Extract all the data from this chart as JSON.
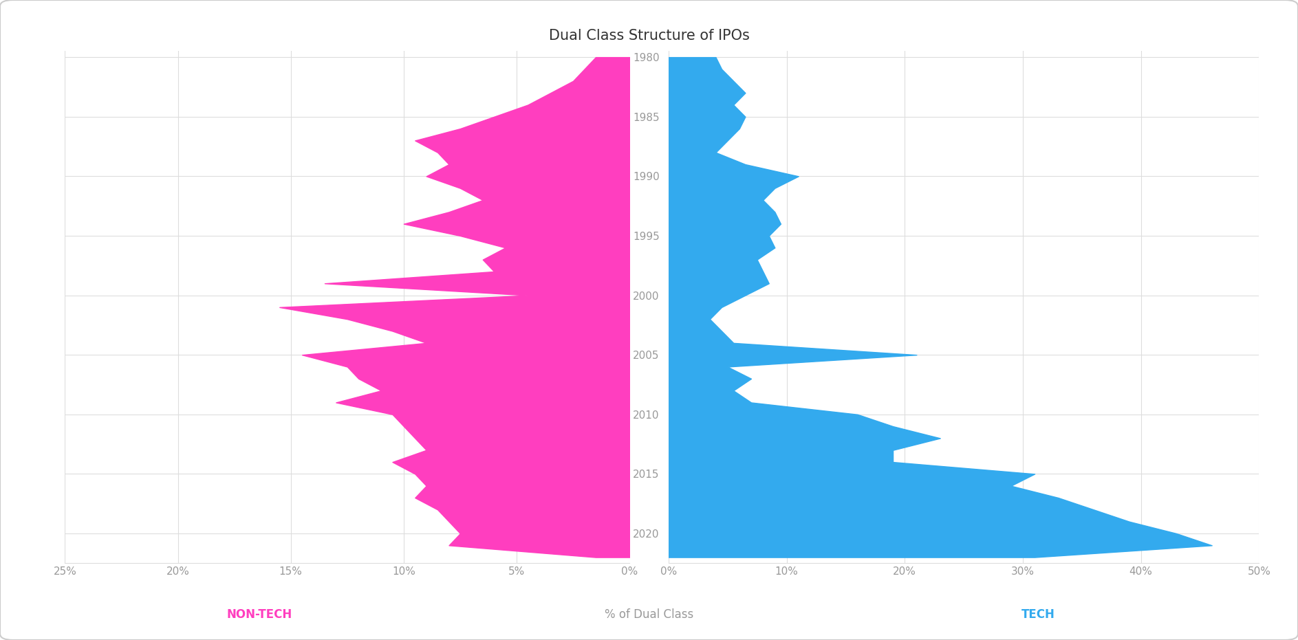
{
  "title": "Dual Class Structure of IPOs",
  "title_fontsize": 15,
  "background_color": "#ffffff",
  "border_color": "#cccccc",
  "nontech_color": "#FF3EBF",
  "tech_color": "#33AAEE",
  "grid_color": "#dddddd",
  "axis_label_color": "#999999",
  "nontech_label_color": "#FF3EBF",
  "tech_label_color": "#33AAEE",
  "xlabel": "% of Dual Class",
  "nontech_label": "NON-TECH",
  "tech_label": "TECH",
  "years": [
    1980,
    1981,
    1982,
    1983,
    1984,
    1985,
    1986,
    1987,
    1988,
    1989,
    1990,
    1991,
    1992,
    1993,
    1994,
    1995,
    1996,
    1997,
    1998,
    1999,
    2000,
    2001,
    2002,
    2003,
    2004,
    2005,
    2006,
    2007,
    2008,
    2009,
    2010,
    2011,
    2012,
    2013,
    2014,
    2015,
    2016,
    2017,
    2018,
    2019,
    2020,
    2021,
    2022
  ],
  "nontech": [
    1.5,
    2.0,
    2.5,
    3.5,
    4.5,
    6.0,
    7.5,
    9.5,
    8.5,
    8.0,
    9.0,
    7.5,
    6.5,
    8.0,
    10.0,
    7.5,
    5.5,
    6.5,
    6.0,
    13.5,
    4.5,
    15.5,
    12.5,
    10.5,
    9.0,
    14.5,
    12.5,
    12.0,
    11.0,
    13.0,
    10.5,
    10.0,
    9.5,
    9.0,
    10.5,
    9.5,
    9.0,
    9.5,
    8.5,
    8.0,
    7.5,
    8.0,
    1.5
  ],
  "tech": [
    4.0,
    4.5,
    5.5,
    6.5,
    5.5,
    6.5,
    6.0,
    5.0,
    4.0,
    6.5,
    11.0,
    9.0,
    8.0,
    9.0,
    9.5,
    8.5,
    9.0,
    7.5,
    8.0,
    8.5,
    6.5,
    4.5,
    3.5,
    4.5,
    5.5,
    21.0,
    5.0,
    7.0,
    5.5,
    7.0,
    16.0,
    19.0,
    23.0,
    19.0,
    19.0,
    31.0,
    29.0,
    33.0,
    36.0,
    39.0,
    43.0,
    46.0,
    31.0
  ],
  "year_ticks": [
    1980,
    1985,
    1990,
    1995,
    2000,
    2005,
    2010,
    2015,
    2020
  ],
  "nontech_xticks": [
    25,
    20,
    15,
    10,
    5,
    0
  ],
  "tech_xticks": [
    0,
    10,
    20,
    30,
    40,
    50
  ]
}
